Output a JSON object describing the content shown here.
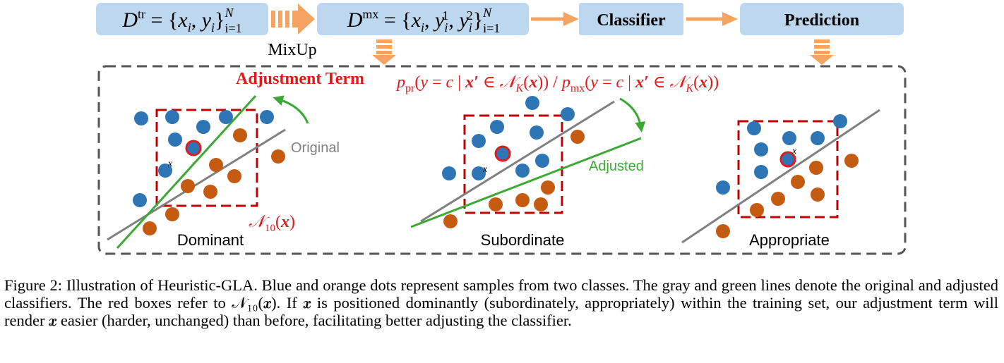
{
  "flow": {
    "box1_label": "D^tr = {x_i, y_i}_{i=1}^N",
    "mixup_label": "MixUp",
    "box2_label": "D^mx = {x_i, y_i^1, y_i^2}_{i=1}^N",
    "classifier_label": "Classifier",
    "prediction_label": "Prediction"
  },
  "panel": {
    "adjustment_term_label": "Adjustment Term",
    "formula_label": "p_pr(y = c | x′ ∈ 𝒩_K(x)) / p_mx(y = c | x′ ∈ 𝒩_K(x))",
    "original_label": "Original",
    "adjusted_label": "Adjusted",
    "neighborhood_label": "𝒩_10(x)",
    "point_label": "x",
    "case_labels": [
      "Dominant",
      "Subordinate",
      "Appropriate"
    ]
  },
  "colors": {
    "box_fill": "#bdd7ee",
    "arrow_orange": "#f4a460",
    "blue_dot": "#2e75b6",
    "orange_dot": "#c55a11",
    "red": "#e31a1c",
    "dark_red": "#c00000",
    "green": "#3aaa35",
    "gray_line": "#808080",
    "dashed_border": "#555555"
  },
  "caption": {
    "text": "Figure 2: Illustration of Heuristic-GLA. Blue and orange dots represent samples from two classes. The gray and green lines denote the original and adjusted classifiers. The red boxes refer to 𝒩₁₀(𝒙). If 𝒙 is positioned dominantly (subordinately, appropriately) within the training set, our adjustment term will render 𝒙 easier (harder, unchanged) than before, facilitating better adjusting the classifier."
  }
}
